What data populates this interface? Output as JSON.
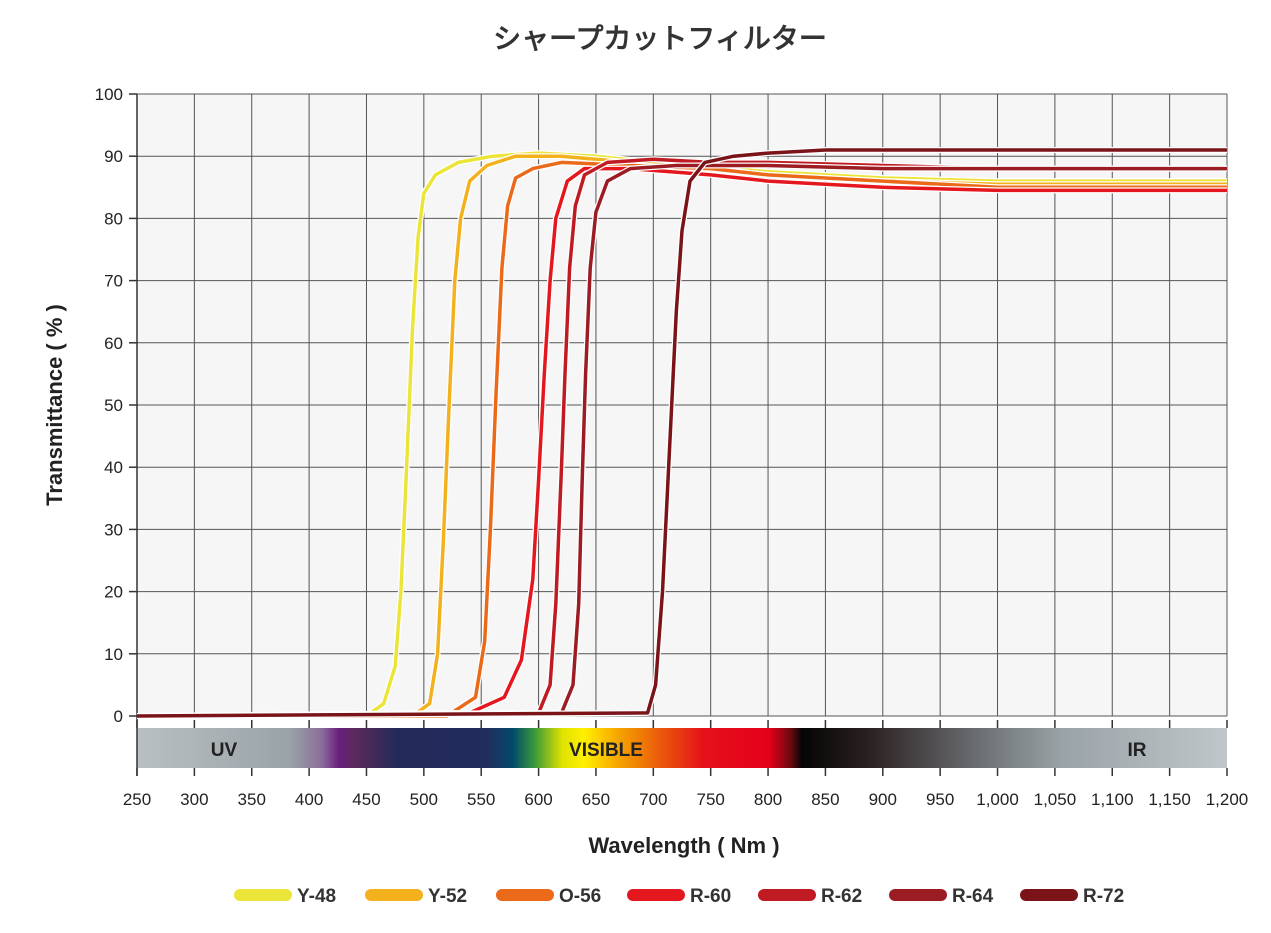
{
  "chart_data": {
    "type": "line",
    "title": "シャープカットフィルター",
    "xlabel": "Wavelength ( Nm )",
    "ylabel": "Transmittance ( % )",
    "xlim": [
      250,
      1200
    ],
    "ylim": [
      0,
      100
    ],
    "xticks": [
      250,
      300,
      350,
      400,
      450,
      500,
      550,
      600,
      650,
      700,
      750,
      800,
      850,
      900,
      950,
      1000,
      1050,
      1100,
      1150,
      1200
    ],
    "xtick_labels": [
      "250",
      "300",
      "350",
      "400",
      "450",
      "500",
      "550",
      "600",
      "650",
      "700",
      "750",
      "800",
      "850",
      "900",
      "950",
      "1,000",
      "1,050",
      "1,100",
      "1,150",
      "1,200"
    ],
    "yticks": [
      0,
      10,
      20,
      30,
      40,
      50,
      60,
      70,
      80,
      90,
      100
    ],
    "grid": true,
    "legend_position": "bottom",
    "spectrum_band": {
      "labels": [
        "UV",
        "VISIBLE",
        "IR"
      ]
    },
    "series": [
      {
        "name": "Y-48",
        "color": "#ebe53a",
        "x": [
          250,
          450,
          465,
          475,
          480,
          485,
          490,
          495,
          500,
          510,
          530,
          560,
          600,
          650,
          700,
          800,
          900,
          1000,
          1200
        ],
        "y": [
          0,
          0,
          2,
          8,
          20,
          40,
          62,
          77,
          84,
          87,
          89,
          90,
          90.5,
          90,
          89,
          87.5,
          86.5,
          86,
          86
        ]
      },
      {
        "name": "Y-52",
        "color": "#f2b11d",
        "x": [
          250,
          490,
          505,
          512,
          517,
          522,
          527,
          532,
          540,
          555,
          580,
          620,
          680,
          750,
          800,
          900,
          1000,
          1200
        ],
        "y": [
          0,
          0,
          2,
          10,
          28,
          50,
          70,
          80,
          86,
          88.5,
          90,
          90,
          89,
          88,
          87,
          86,
          85.5,
          85.5
        ]
      },
      {
        "name": "O-56",
        "color": "#ea6a1a",
        "x": [
          250,
          520,
          545,
          553,
          558,
          563,
          568,
          573,
          580,
          595,
          620,
          680,
          750,
          800,
          900,
          1000,
          1200
        ],
        "y": [
          0,
          0,
          3,
          12,
          30,
          52,
          72,
          82,
          86.5,
          88,
          89,
          88.5,
          88,
          87,
          86,
          85,
          85
        ]
      },
      {
        "name": "R-60",
        "color": "#e5171e",
        "x": [
          250,
          540,
          570,
          585,
          595,
          600,
          605,
          610,
          615,
          625,
          640,
          680,
          750,
          800,
          850,
          900,
          1000,
          1200
        ],
        "y": [
          0,
          0.5,
          3,
          9,
          22,
          38,
          55,
          70,
          80,
          86,
          88,
          88,
          87,
          86,
          85.5,
          85,
          84.5,
          84.5
        ]
      },
      {
        "name": "R-62",
        "color": "#c01a22",
        "x": [
          250,
          600,
          610,
          615,
          620,
          623,
          627,
          632,
          640,
          660,
          700,
          750,
          800,
          900,
          1000,
          1200
        ],
        "y": [
          0,
          0.5,
          5,
          18,
          40,
          55,
          72,
          82,
          87,
          89,
          89.5,
          89,
          89,
          88.5,
          88,
          88
        ]
      },
      {
        "name": "R-64",
        "color": "#9b1c22",
        "x": [
          250,
          620,
          630,
          635,
          638,
          641,
          645,
          650,
          660,
          680,
          720,
          800,
          900,
          1000,
          1200
        ],
        "y": [
          0,
          0.5,
          5,
          18,
          38,
          55,
          72,
          81,
          86,
          88,
          88.5,
          88.5,
          88,
          88,
          88
        ]
      },
      {
        "name": "R-72",
        "color": "#7a1418",
        "x": [
          250,
          695,
          702,
          708,
          712,
          716,
          720,
          725,
          732,
          745,
          770,
          800,
          850,
          900,
          1000,
          1200
        ],
        "y": [
          0,
          0.5,
          5,
          20,
          35,
          50,
          65,
          78,
          86,
          89,
          90,
          90.5,
          91,
          91,
          91,
          91
        ]
      }
    ]
  }
}
